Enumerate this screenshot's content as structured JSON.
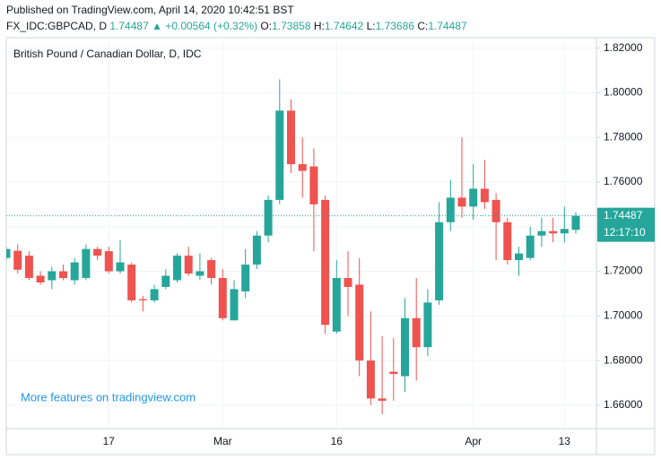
{
  "header": {
    "published": "Published on TradingView.com, April 14, 2020 10:42:51 BST",
    "symbol": "FX_IDC:GBPCAD, D",
    "price": "1.74487",
    "change": "▲ +0.00564 (+0.32%)",
    "ohlc": [
      {
        "label": "O:",
        "value": "1.73858"
      },
      {
        "label": "H:",
        "value": "1.74642"
      },
      {
        "label": "L:",
        "value": "1.73686"
      },
      {
        "label": "C:",
        "value": "1.74487"
      }
    ]
  },
  "chart_data": {
    "type": "candlestick",
    "title": "British Pound / Canadian Dollar, D, IDC",
    "watermark": "More features on tradingview.com",
    "up_color": "#26a69a",
    "down_color": "#ef5350",
    "categories": [
      null,
      null,
      null,
      null,
      null,
      null,
      null,
      null,
      null,
      "17",
      null,
      null,
      null,
      null,
      null,
      null,
      null,
      null,
      null,
      "Mar",
      null,
      null,
      null,
      null,
      null,
      null,
      null,
      null,
      null,
      "16",
      null,
      null,
      null,
      null,
      null,
      null,
      null,
      null,
      null,
      null,
      null,
      "Apr",
      null,
      null,
      null,
      null,
      null,
      null,
      null,
      "13",
      null
    ],
    "open": [
      1.726,
      1.7292,
      1.727,
      1.718,
      1.716,
      1.72,
      1.716,
      1.717,
      1.73,
      1.729,
      1.72,
      1.723,
      1.7075,
      1.707,
      1.713,
      1.716,
      1.727,
      1.718,
      1.725,
      1.717,
      1.698,
      1.711,
      1.723,
      1.736,
      1.752,
      1.792,
      1.768,
      1.767,
      1.752,
      1.693,
      1.717,
      1.714,
      1.68,
      1.663,
      1.675,
      1.673,
      1.699,
      1.686,
      1.707,
      1.742,
      1.753,
      1.749,
      1.757,
      1.752,
      1.742,
      1.725,
      1.726,
      1.736,
      1.738,
      1.737,
      1.73858
    ],
    "high": [
      1.731,
      1.732,
      1.729,
      1.72,
      1.722,
      1.723,
      1.726,
      1.732,
      1.731,
      1.731,
      1.734,
      1.724,
      1.709,
      1.714,
      1.721,
      1.728,
      1.731,
      1.728,
      1.726,
      1.721,
      1.716,
      1.73,
      1.738,
      1.754,
      1.806,
      1.797,
      1.78,
      1.775,
      1.754,
      1.725,
      1.729,
      1.726,
      1.702,
      1.691,
      1.69,
      1.708,
      1.717,
      1.712,
      1.751,
      1.761,
      1.78,
      1.768,
      1.77,
      1.755,
      1.744,
      1.731,
      1.74,
      1.744,
      1.744,
      1.749,
      1.74642
    ],
    "low": [
      1.725,
      1.719,
      1.716,
      1.714,
      1.712,
      1.716,
      1.714,
      1.716,
      1.725,
      1.719,
      1.719,
      1.706,
      1.702,
      1.706,
      1.712,
      1.715,
      1.718,
      1.716,
      1.714,
      1.698,
      1.698,
      1.708,
      1.721,
      1.733,
      1.75,
      1.764,
      1.753,
      1.729,
      1.692,
      1.692,
      1.7,
      1.673,
      1.66,
      1.656,
      1.662,
      1.666,
      1.671,
      1.682,
      1.705,
      1.738,
      1.744,
      1.743,
      1.748,
      1.725,
      1.723,
      1.718,
      1.725,
      1.731,
      1.733,
      1.733,
      1.73686
    ],
    "close": [
      1.73,
      1.7207,
      1.717,
      1.715,
      1.72,
      1.717,
      1.724,
      1.73,
      1.727,
      1.72,
      1.724,
      1.707,
      1.707,
      1.712,
      1.718,
      1.727,
      1.719,
      1.72,
      1.717,
      1.699,
      1.712,
      1.723,
      1.736,
      1.752,
      1.792,
      1.768,
      1.765,
      1.75,
      1.696,
      1.717,
      1.713,
      1.68,
      1.663,
      1.662,
      1.674,
      1.699,
      1.686,
      1.706,
      1.742,
      1.753,
      1.749,
      1.757,
      1.751,
      1.742,
      1.725,
      1.728,
      1.736,
      1.738,
      1.737,
      1.739,
      1.74487
    ],
    "ylim": [
      1.6495,
      1.8247
    ],
    "yticks": [
      {
        "value": 1.66,
        "label": "1.66000"
      },
      {
        "value": 1.68,
        "label": "1.68000"
      },
      {
        "value": 1.7,
        "label": "1.70000"
      },
      {
        "value": 1.72,
        "label": "1.72000"
      },
      {
        "value": 1.74,
        "label": "1.74000"
      },
      {
        "value": 1.76,
        "label": "1.76000"
      },
      {
        "value": 1.78,
        "label": "1.78000"
      },
      {
        "value": 1.8,
        "label": "1.80000"
      },
      {
        "value": 1.82,
        "label": "1.82000"
      }
    ],
    "last_price": 1.74487,
    "countdown": "12:17:10",
    "grid": true
  }
}
